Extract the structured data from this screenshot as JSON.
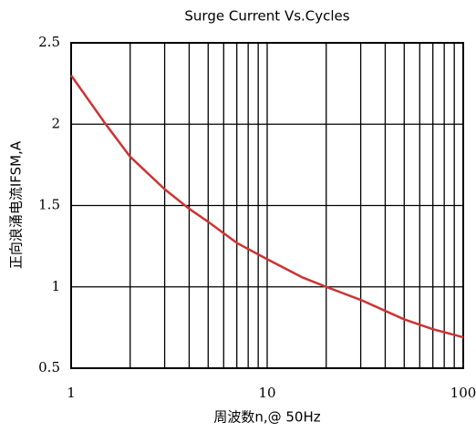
{
  "chart_data": {
    "type": "line",
    "title": "Surge Current Vs.Cycles",
    "xlabel": "周波数n,@ 50Hz",
    "ylabel": "正向浪涌电流IFSM,A",
    "x": [
      1,
      1.5,
      2,
      3,
      4,
      5,
      7,
      10,
      15,
      20,
      30,
      50,
      70,
      100
    ],
    "series": [
      {
        "name": "IFSM",
        "color": "#cc3333",
        "values": [
          2.3,
          2.0,
          1.8,
          1.6,
          1.48,
          1.4,
          1.27,
          1.17,
          1.06,
          1.0,
          0.92,
          0.8,
          0.74,
          0.69
        ]
      }
    ],
    "xlim": [
      1,
      100
    ],
    "xticks": [
      1,
      10,
      100
    ],
    "xlog": true,
    "ylim": [
      0.5,
      2.5
    ],
    "yticks": [
      0.5,
      1,
      1.5,
      2,
      2.5
    ],
    "grid": true
  }
}
